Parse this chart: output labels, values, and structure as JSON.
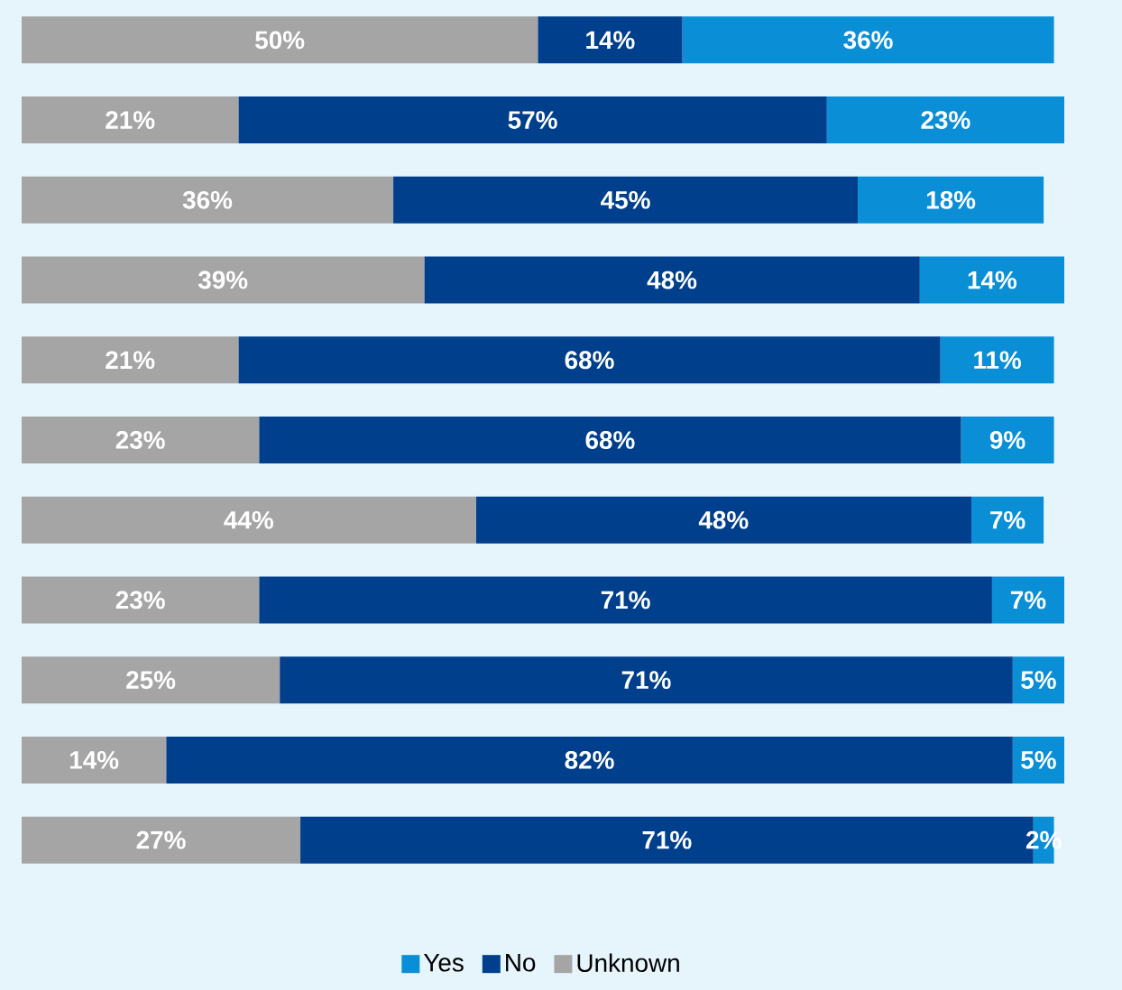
{
  "chart_data": {
    "type": "bar",
    "orientation": "horizontal",
    "stacked": true,
    "legend": "bottom",
    "categories": [
      null,
      null,
      null,
      null,
      null,
      null,
      null,
      null,
      null,
      null,
      null
    ],
    "series": [
      {
        "name": "Unknown",
        "color": "#a5a5a5",
        "values": [
          50,
          21,
          36,
          39,
          21,
          23,
          44,
          23,
          25,
          14,
          27
        ],
        "value_labels": [
          "50%",
          "21%",
          "36%",
          "39%",
          "21%",
          "23%",
          "44%",
          "23%",
          "25%",
          "14%",
          "27%"
        ]
      },
      {
        "name": "No",
        "color": "#003f8c",
        "values": [
          14,
          57,
          45,
          48,
          68,
          68,
          48,
          71,
          71,
          82,
          71
        ],
        "value_labels": [
          "14%",
          "57%",
          "45%",
          "48%",
          "68%",
          "68%",
          "48%",
          "71%",
          "71%",
          "82%",
          "71%"
        ]
      },
      {
        "name": "Yes",
        "color": "#0a8fd6",
        "values": [
          36,
          23,
          18,
          14,
          11,
          9,
          7,
          7,
          5,
          5,
          2
        ],
        "value_labels": [
          "36%",
          "23%",
          "18%",
          "14%",
          "11%",
          "9%",
          "7%",
          "7%",
          "5%",
          "5%",
          "2%"
        ]
      }
    ]
  }
}
